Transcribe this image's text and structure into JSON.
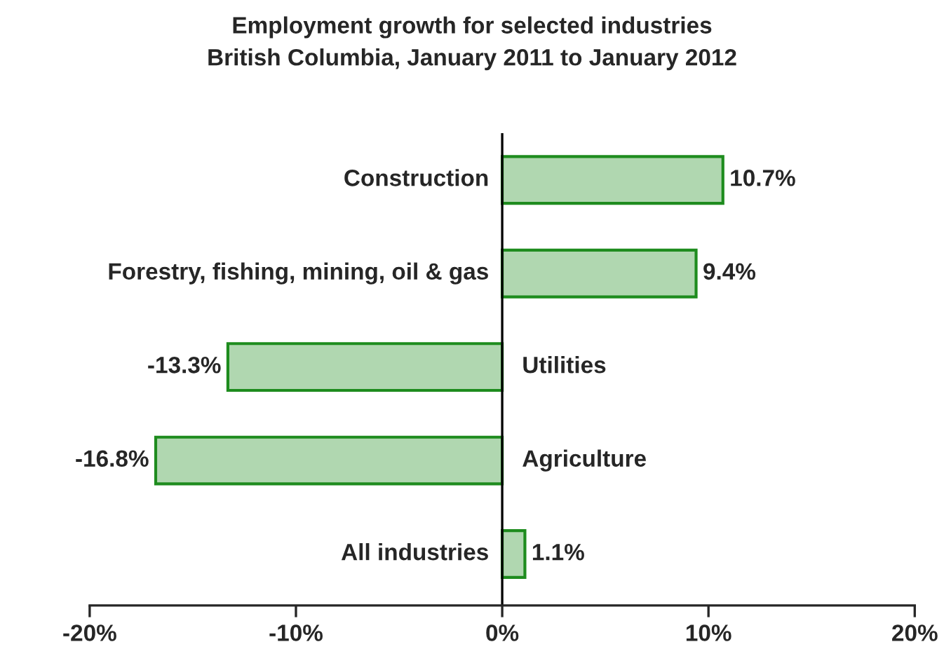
{
  "chart_data": {
    "type": "bar",
    "orientation": "horizontal",
    "title": "Employment growth for selected industries\nBritish Columbia, January 2011 to January 2012",
    "categories": [
      "Construction",
      "Forestry, fishing, mining, oil & gas",
      "Utilities",
      "Agriculture",
      "All industries"
    ],
    "values": [
      10.7,
      9.4,
      -13.3,
      -16.8,
      1.1
    ],
    "value_labels": [
      "10.7%",
      "9.4%",
      "-13.3%",
      "-16.8%",
      "1.1%"
    ],
    "color": "#1e8c1e",
    "xlim": [
      -20,
      20
    ],
    "xticks": [
      {
        "value": -20,
        "label": "-20%"
      },
      {
        "value": -10,
        "label": "-10%"
      },
      {
        "value": 0,
        "label": "0%"
      },
      {
        "value": 10,
        "label": "10%"
      },
      {
        "value": 20,
        "label": "20%"
      }
    ],
    "grid": false,
    "legend": false
  }
}
